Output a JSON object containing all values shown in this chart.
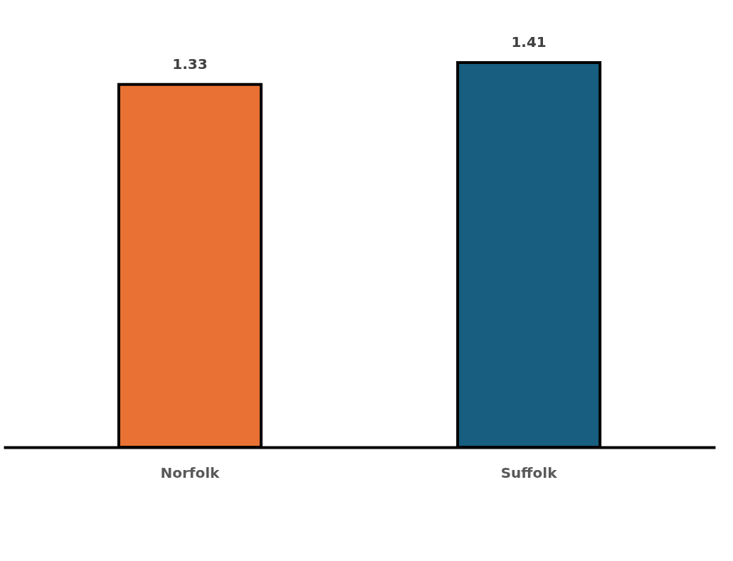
{
  "chart_data": {
    "type": "bar",
    "categories": [
      "Norfolk",
      "Suffolk"
    ],
    "values": [
      1.33,
      1.41
    ],
    "colors": [
      "#e87133",
      "#175e80"
    ],
    "data_labels": true
  }
}
